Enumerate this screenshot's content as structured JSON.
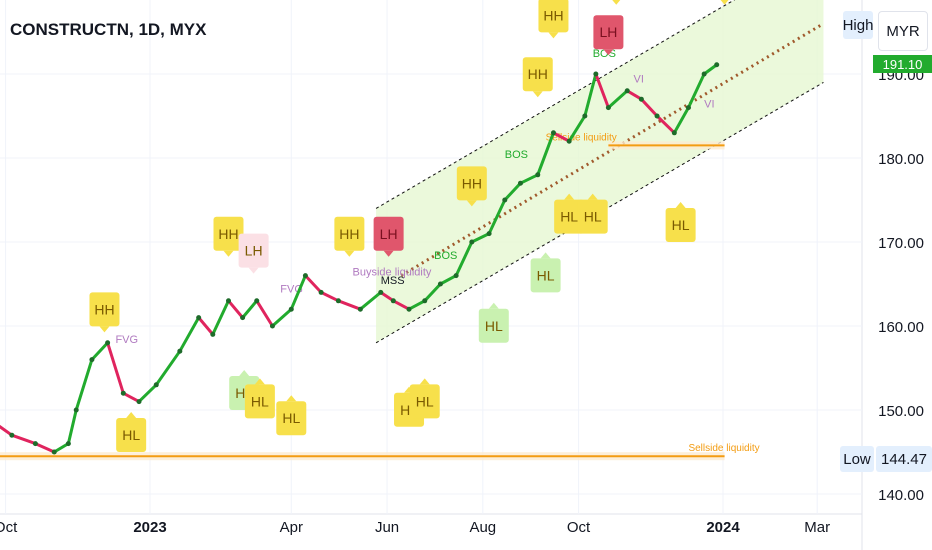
{
  "header": {
    "symbol_title": "CONSTRUCTN, 1D, MYX",
    "high_label": "High",
    "currency_label": "MYR",
    "low_label": "Low",
    "low_value": "144.47",
    "last_price": "191.10"
  },
  "colors": {
    "up_candle": "#22ab2e",
    "down_candle": "#e0245e",
    "channel_fill": "#e6f8d2",
    "hh_marker": "#f7e04b",
    "hl_marker": "#f7e04b",
    "lh_marker_strong": "#e0566c",
    "lh_marker_soft": "#fbe0e5",
    "soft_green_marker": "#c9f1b0",
    "sellside_line": "#f39c12",
    "trend_dotted": "#a05a2c"
  },
  "chart_data": {
    "type": "line",
    "ylim": [
      140,
      200
    ],
    "y_ticks": [
      140,
      150,
      160,
      170,
      180,
      190
    ],
    "y_tick_labels": [
      "140.00",
      "150.00",
      "160.00",
      "170.00",
      "180.00",
      "190.00"
    ],
    "x_tick_labels": [
      "Oct",
      "2023",
      "Apr",
      "Jun",
      "Aug",
      "Oct",
      "2024",
      "Mar"
    ],
    "x_tick_dates": [
      "2022-10-01",
      "2023-01-01",
      "2023-04-01",
      "2023-06-01",
      "2023-08-01",
      "2023-10-01",
      "2024-01-01",
      "2024-03-01"
    ],
    "series": [
      {
        "values_by_date": [
          [
            "2022-09-05",
            151
          ],
          [
            "2022-09-20",
            149
          ],
          [
            "2022-10-05",
            147
          ],
          [
            "2022-10-20",
            146
          ],
          [
            "2022-11-01",
            145
          ],
          [
            "2022-11-10",
            146
          ],
          [
            "2022-11-15",
            150
          ],
          [
            "2022-11-25",
            156
          ],
          [
            "2022-12-05",
            158
          ],
          [
            "2022-12-15",
            152
          ],
          [
            "2022-12-25",
            151
          ],
          [
            "2023-01-05",
            153
          ],
          [
            "2023-01-20",
            157
          ],
          [
            "2023-02-01",
            161
          ],
          [
            "2023-02-10",
            159
          ],
          [
            "2023-02-20",
            163
          ],
          [
            "2023-03-01",
            161
          ],
          [
            "2023-03-10",
            163
          ],
          [
            "2023-03-20",
            160
          ],
          [
            "2023-04-01",
            162
          ],
          [
            "2023-04-10",
            166
          ],
          [
            "2023-04-20",
            164
          ],
          [
            "2023-05-01",
            163
          ],
          [
            "2023-05-15",
            162
          ],
          [
            "2023-05-28",
            164
          ],
          [
            "2023-06-05",
            163
          ],
          [
            "2023-06-15",
            162
          ],
          [
            "2023-06-25",
            163
          ],
          [
            "2023-07-05",
            165
          ],
          [
            "2023-07-15",
            166
          ],
          [
            "2023-07-25",
            170
          ],
          [
            "2023-08-05",
            171
          ],
          [
            "2023-08-15",
            175
          ],
          [
            "2023-08-25",
            177
          ],
          [
            "2023-09-05",
            178
          ],
          [
            "2023-09-15",
            183
          ],
          [
            "2023-09-25",
            182
          ],
          [
            "2023-10-05",
            185
          ],
          [
            "2023-10-12",
            190
          ],
          [
            "2023-10-20",
            186
          ],
          [
            "2023-11-01",
            188
          ],
          [
            "2023-11-10",
            187
          ],
          [
            "2023-11-20",
            185
          ],
          [
            "2023-12-01",
            183
          ],
          [
            "2023-12-10",
            186
          ],
          [
            "2023-12-20",
            190
          ],
          [
            "2023-12-28",
            191.1
          ]
        ]
      }
    ],
    "levels": [
      {
        "label": "Sellside liquidity",
        "value": 144.5
      },
      {
        "label": "Sellside liquidity",
        "value": 181.5
      }
    ],
    "zone_labels": [
      "FVG",
      "FVG",
      "MSS",
      "BOS",
      "BOS",
      "BOS",
      "VI",
      "VI",
      "Buyside liquidity"
    ],
    "markers": [
      {
        "label": "HH",
        "date": "2022-12-03",
        "value": 159
      },
      {
        "label": "HL",
        "date": "2022-12-20",
        "value": 150
      },
      {
        "label": "HH",
        "date": "2023-02-20",
        "value": 168
      },
      {
        "label": "LH",
        "date": "2023-03-08",
        "value": 166
      },
      {
        "label": "HL",
        "date": "2023-03-02",
        "value": 155
      },
      {
        "label": "HL",
        "date": "2023-03-12",
        "value": 154
      },
      {
        "label": "HL",
        "date": "2023-04-01",
        "value": 152
      },
      {
        "label": "HH",
        "date": "2023-05-08",
        "value": 168
      },
      {
        "label": "LH",
        "date": "2023-06-02",
        "value": 168
      },
      {
        "label": "HL",
        "date": "2023-06-15",
        "value": 153
      },
      {
        "label": "HL",
        "date": "2023-06-25",
        "value": 154
      },
      {
        "label": "HH",
        "date": "2023-07-25",
        "value": 174
      },
      {
        "label": "HL",
        "date": "2023-08-08",
        "value": 163
      },
      {
        "label": "HL",
        "date": "2023-09-10",
        "value": 169
      },
      {
        "label": "HH",
        "date": "2023-09-05",
        "value": 187
      },
      {
        "label": "HL",
        "date": "2023-09-25",
        "value": 176
      },
      {
        "label": "HH",
        "date": "2023-09-15",
        "value": 194
      },
      {
        "label": "HL",
        "date": "2023-10-10",
        "value": 176
      },
      {
        "label": "HH",
        "date": "2023-10-25",
        "value": 198
      },
      {
        "label": "LH",
        "date": "2023-10-20",
        "value": 192
      },
      {
        "label": "HL",
        "date": "2023-12-05",
        "value": 175
      },
      {
        "label": "HH",
        "date": "2024-01-02",
        "value": 198
      }
    ]
  }
}
